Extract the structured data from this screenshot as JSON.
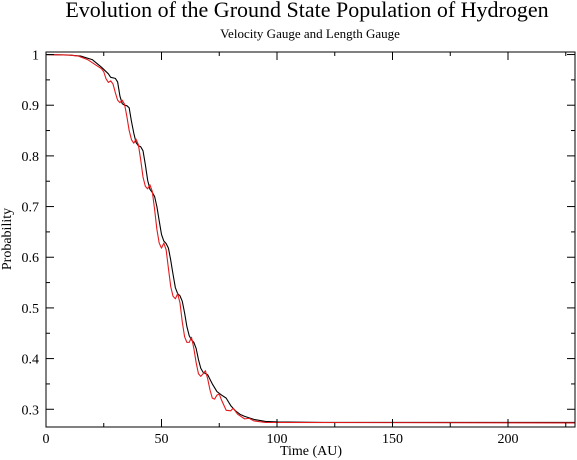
{
  "chart_data": {
    "type": "line",
    "title": "Evolution of the Ground State Population of Hydrogen",
    "subtitle": "Velocity Gauge and Length Gauge",
    "xlabel": "Time (AU)",
    "ylabel": "Probability",
    "xlim": [
      0,
      229
    ],
    "ylim": [
      0.265,
      1.005
    ],
    "xticks": [
      0,
      50,
      100,
      150,
      200
    ],
    "xtick_labels": [
      "0",
      "50",
      "100",
      "150",
      "200"
    ],
    "yticks": [
      0.3,
      0.4,
      0.5,
      0.6,
      0.7,
      0.8,
      0.9,
      1.0
    ],
    "ytick_labels": [
      "0.3",
      "0.4",
      "0.5",
      "0.6",
      "0.7",
      "0.8",
      "0.9",
      "1"
    ],
    "x_minor_step": 25,
    "y_minor_step": 0.05,
    "grid": false,
    "colors": {
      "series1": "#000000",
      "series2": "#e41a1c",
      "axis": "#000000"
    },
    "series": [
      {
        "color": "#000000",
        "points": [
          [
            0,
            1.0
          ],
          [
            10,
            0.999
          ],
          [
            15,
            0.997
          ],
          [
            20,
            0.99
          ],
          [
            24,
            0.975
          ],
          [
            27,
            0.962
          ],
          [
            28,
            0.955
          ],
          [
            30,
            0.953
          ],
          [
            31,
            0.946
          ],
          [
            32,
            0.918
          ],
          [
            33,
            0.903
          ],
          [
            34,
            0.9
          ],
          [
            35,
            0.899
          ],
          [
            36,
            0.895
          ],
          [
            37,
            0.868
          ],
          [
            38,
            0.845
          ],
          [
            39,
            0.826
          ],
          [
            40,
            0.82
          ],
          [
            41,
            0.818
          ],
          [
            42,
            0.81
          ],
          [
            43,
            0.783
          ],
          [
            44,
            0.752
          ],
          [
            45,
            0.734
          ],
          [
            46,
            0.728
          ],
          [
            47,
            0.72
          ],
          [
            48,
            0.7
          ],
          [
            49,
            0.672
          ],
          [
            50,
            0.645
          ],
          [
            51,
            0.632
          ],
          [
            52,
            0.627
          ],
          [
            53,
            0.618
          ],
          [
            54,
            0.594
          ],
          [
            55,
            0.566
          ],
          [
            56,
            0.54
          ],
          [
            57,
            0.528
          ],
          [
            58,
            0.524
          ],
          [
            59,
            0.513
          ],
          [
            60,
            0.49
          ],
          [
            61,
            0.463
          ],
          [
            62,
            0.445
          ],
          [
            63,
            0.437
          ],
          [
            64,
            0.432
          ],
          [
            65,
            0.42
          ],
          [
            66,
            0.398
          ],
          [
            67,
            0.381
          ],
          [
            68,
            0.373
          ],
          [
            70,
            0.368
          ],
          [
            72,
            0.35
          ],
          [
            74,
            0.335
          ],
          [
            76,
            0.328
          ],
          [
            78,
            0.322
          ],
          [
            80,
            0.307
          ],
          [
            82,
            0.297
          ],
          [
            84,
            0.29
          ],
          [
            86,
            0.286
          ],
          [
            90,
            0.28
          ],
          [
            95,
            0.276
          ],
          [
            100,
            0.275
          ],
          [
            120,
            0.274
          ],
          [
            229,
            0.274
          ]
        ]
      },
      {
        "color": "#e41a1c",
        "points": [
          [
            0,
            1.0
          ],
          [
            10,
            0.999
          ],
          [
            14,
            0.997
          ],
          [
            18,
            0.99
          ],
          [
            22,
            0.978
          ],
          [
            24,
            0.972
          ],
          [
            25,
            0.966
          ],
          [
            26,
            0.952
          ],
          [
            27,
            0.945
          ],
          [
            28,
            0.948
          ],
          [
            29,
            0.942
          ],
          [
            30,
            0.925
          ],
          [
            31,
            0.91
          ],
          [
            32,
            0.905
          ],
          [
            33,
            0.91
          ],
          [
            34,
            0.902
          ],
          [
            35,
            0.878
          ],
          [
            36,
            0.85
          ],
          [
            37,
            0.832
          ],
          [
            38,
            0.825
          ],
          [
            39,
            0.833
          ],
          [
            40,
            0.822
          ],
          [
            41,
            0.792
          ],
          [
            42,
            0.758
          ],
          [
            43,
            0.74
          ],
          [
            44,
            0.735
          ],
          [
            45,
            0.743
          ],
          [
            46,
            0.73
          ],
          [
            47,
            0.695
          ],
          [
            48,
            0.655
          ],
          [
            49,
            0.628
          ],
          [
            50,
            0.618
          ],
          [
            51,
            0.628
          ],
          [
            52,
            0.615
          ],
          [
            53,
            0.578
          ],
          [
            54,
            0.542
          ],
          [
            55,
            0.523
          ],
          [
            56,
            0.518
          ],
          [
            57,
            0.528
          ],
          [
            58,
            0.51
          ],
          [
            59,
            0.472
          ],
          [
            60,
            0.443
          ],
          [
            61,
            0.432
          ],
          [
            62,
            0.432
          ],
          [
            63,
            0.442
          ],
          [
            64,
            0.42
          ],
          [
            65,
            0.392
          ],
          [
            66,
            0.37
          ],
          [
            67,
            0.365
          ],
          [
            68,
            0.37
          ],
          [
            69,
            0.376
          ],
          [
            70,
            0.36
          ],
          [
            71,
            0.338
          ],
          [
            72,
            0.322
          ],
          [
            73,
            0.32
          ],
          [
            74,
            0.328
          ],
          [
            75,
            0.33
          ],
          [
            76,
            0.318
          ],
          [
            78,
            0.298
          ],
          [
            80,
            0.297
          ],
          [
            81,
            0.302
          ],
          [
            83,
            0.29
          ],
          [
            86,
            0.281
          ],
          [
            88,
            0.282
          ],
          [
            90,
            0.277
          ],
          [
            95,
            0.274
          ],
          [
            229,
            0.273
          ]
        ]
      }
    ]
  }
}
